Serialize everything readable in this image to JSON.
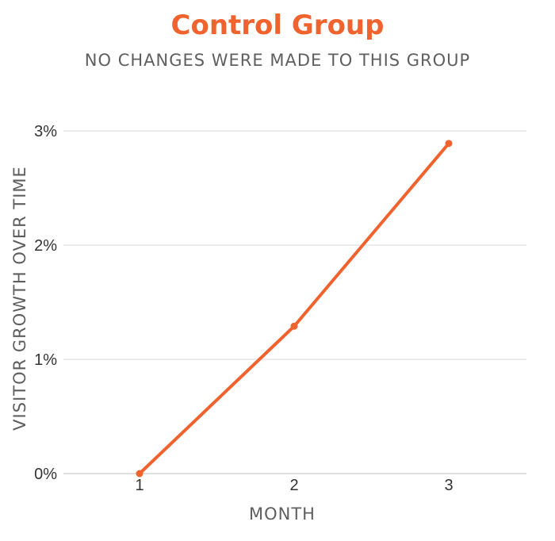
{
  "chart_data": {
    "type": "line",
    "title": "Control Group",
    "subtitle": "NO CHANGES WERE MADE TO THIS GROUP",
    "xlabel": "MONTH",
    "ylabel": "VISITOR GROWTH OVER TIME",
    "x": [
      1,
      2,
      3
    ],
    "x_tick_labels": [
      "1",
      "2",
      "3"
    ],
    "y_tick_labels": [
      "0%",
      "1%",
      "2%",
      "3%"
    ],
    "y_ticks": [
      0,
      1,
      2,
      3
    ],
    "ylim": [
      0,
      3
    ],
    "series": [
      {
        "values": [
          0,
          1.29,
          2.89
        ]
      }
    ],
    "grid": true,
    "colors": {
      "line": "#f0632f",
      "title": "#f0632f",
      "grid": "#d9d9d9",
      "text": "#5f5f5f"
    }
  }
}
